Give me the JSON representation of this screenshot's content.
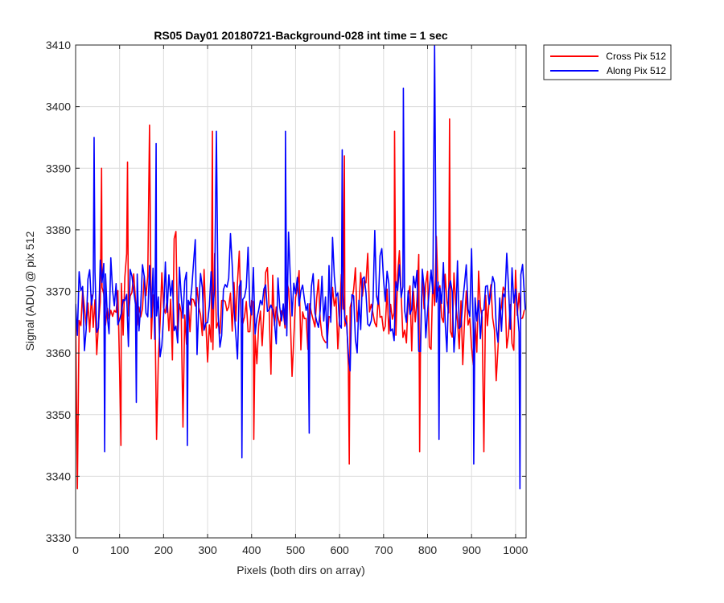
{
  "chart_data": {
    "type": "line",
    "title": "RS05 Day01 20180721-Background-028 int time = 1 sec",
    "xlabel": "Pixels (both dirs on array)",
    "ylabel": "Signal (ADU) @ pix 512",
    "xlim": [
      0,
      1024
    ],
    "ylim": [
      3330,
      3410
    ],
    "xticks": [
      0,
      100,
      200,
      300,
      400,
      500,
      600,
      700,
      800,
      900,
      1000
    ],
    "yticks": [
      3330,
      3340,
      3350,
      3360,
      3370,
      3380,
      3390,
      3400,
      3410
    ],
    "grid": true,
    "legend_position": "outside-top-right",
    "series": [
      {
        "name": "Cross Pix 512",
        "color": "#ff0000",
        "baseline": 3367,
        "noise_amplitude": 7,
        "sample_step": 4,
        "marked_points": [
          [
            0,
            3367
          ],
          [
            4,
            3338
          ],
          [
            59,
            3390
          ],
          [
            103,
            3345
          ],
          [
            118,
            3391
          ],
          [
            168,
            3397
          ],
          [
            184,
            3346
          ],
          [
            244,
            3348
          ],
          [
            311,
            3396
          ],
          [
            405,
            3346
          ],
          [
            611,
            3392
          ],
          [
            622,
            3342
          ],
          [
            725,
            3396
          ],
          [
            782,
            3344
          ],
          [
            850,
            3398
          ],
          [
            928,
            3344
          ],
          [
            1020,
            3367
          ]
        ]
      },
      {
        "name": "Along Pix 512",
        "color": "#0000ff",
        "baseline": 3368,
        "noise_amplitude": 7,
        "sample_step": 4,
        "marked_points": [
          [
            0,
            3368
          ],
          [
            42,
            3395
          ],
          [
            66,
            3344
          ],
          [
            138,
            3352
          ],
          [
            183,
            3394
          ],
          [
            254,
            3345
          ],
          [
            320,
            3396
          ],
          [
            378,
            3343
          ],
          [
            477,
            3396
          ],
          [
            531,
            3347
          ],
          [
            606,
            3393
          ],
          [
            745,
            3403
          ],
          [
            816,
            3410
          ],
          [
            826,
            3346
          ],
          [
            905,
            3342
          ],
          [
            1010,
            3338
          ],
          [
            1022,
            3367
          ]
        ]
      }
    ]
  }
}
